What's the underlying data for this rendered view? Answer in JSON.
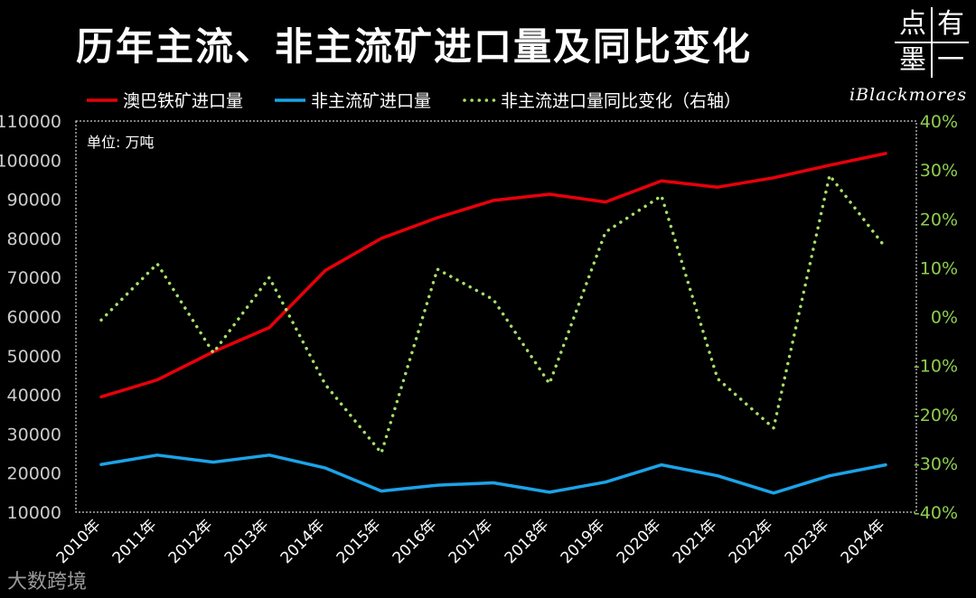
{
  "header": {
    "title": "历年主流、非主流矿进口量及同比变化",
    "logo_chars": [
      "点",
      "有",
      "墨",
      "一"
    ],
    "brand": "iBlackmores"
  },
  "watermark": "大数跨境",
  "chart_data": {
    "type": "line",
    "unit_label": "单位: 万吨",
    "categories": [
      "2010年",
      "2011年",
      "2012年",
      "2013年",
      "2014年",
      "2015年",
      "2016年",
      "2017年",
      "2018年",
      "2019年",
      "2020年",
      "2021年",
      "2022年",
      "2023年",
      "2024年"
    ],
    "series": [
      {
        "name": "澳巴铁矿进口量",
        "axis": "left",
        "color": "#e8000b",
        "style": "solid",
        "values": [
          39500,
          43800,
          51000,
          57200,
          71800,
          80000,
          85300,
          89700,
          91300,
          89300,
          94700,
          93100,
          95500,
          98700,
          101700
        ]
      },
      {
        "name": "非主流矿进口量",
        "axis": "left",
        "color": "#1ca3e8",
        "style": "solid",
        "values": [
          22200,
          24600,
          22800,
          24600,
          21300,
          15400,
          16900,
          17500,
          15100,
          17700,
          22100,
          19300,
          14900,
          19300,
          22100
        ]
      },
      {
        "name": "非主流进口量同比变化（右轴）",
        "axis": "right",
        "color": "#a6e06a",
        "style": "dotted",
        "values": [
          -0.7,
          10.8,
          -7.4,
          8.0,
          -13.9,
          -27.9,
          9.7,
          3.5,
          -13.7,
          17.3,
          24.7,
          -12.7,
          -22.8,
          28.9,
          14.1
        ]
      }
    ],
    "y_left": {
      "min": 10000,
      "max": 110000,
      "step": 10000,
      "ticks": [
        "10000",
        "20000",
        "30000",
        "40000",
        "50000",
        "60000",
        "70000",
        "80000",
        "90000",
        "100000",
        "110000"
      ]
    },
    "y_right": {
      "min": -40,
      "max": 40,
      "step": 10,
      "ticks": [
        "-40%",
        "-30%",
        "-20%",
        "-10%",
        "0%",
        "10%",
        "20%",
        "30%",
        "40%"
      ]
    },
    "legend_position": "top",
    "grid": false,
    "colors": {
      "left_axis_text": "#cccccc",
      "right_axis_text": "#8fce4f",
      "frame": "#ffffff"
    }
  }
}
